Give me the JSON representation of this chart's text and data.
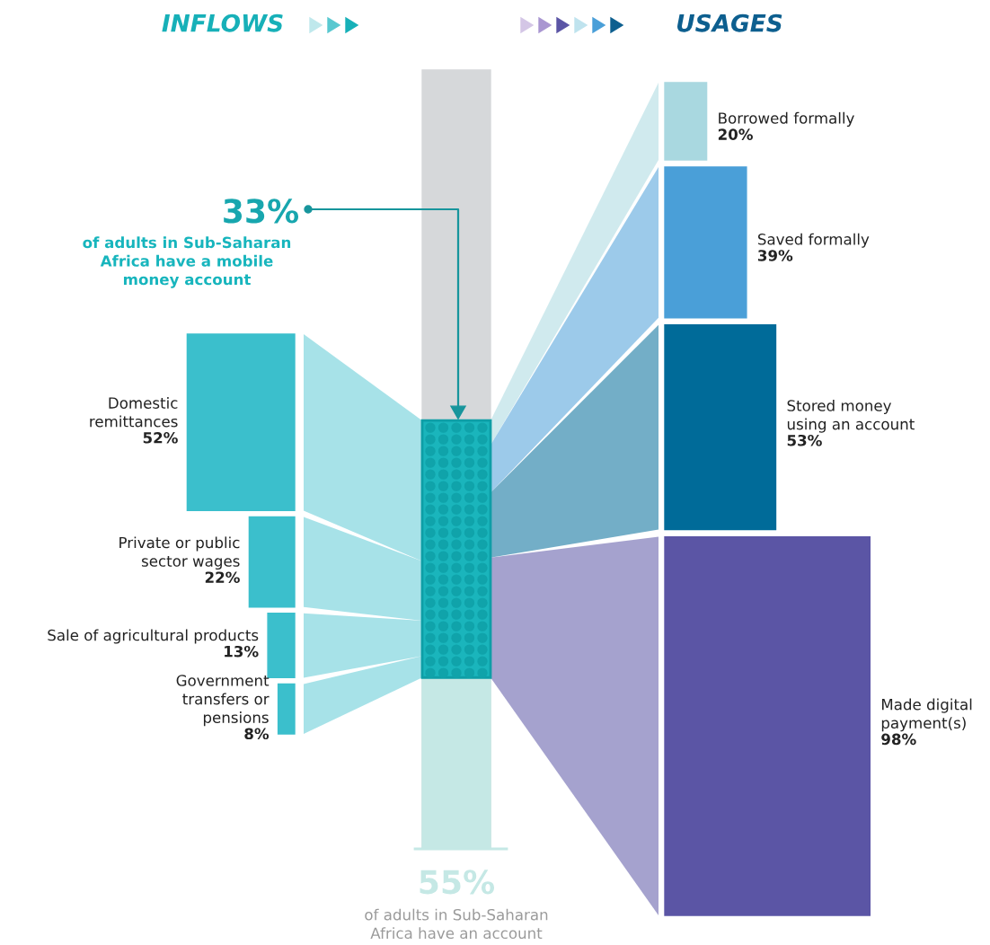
{
  "chart_data": [
    {
      "type": "other",
      "title": "INFLOWS",
      "categories": [
        "Domestic\nremittances",
        "Private or public\nsector wages",
        "Sale of agricultural products",
        "Government\ntransfers or\npensions"
      ],
      "values": [
        52,
        22,
        13,
        8
      ],
      "value_labels": [
        "52%",
        "22%",
        "13%",
        "8%"
      ],
      "colors": [
        "#3bbfcc",
        "#3bbfcc",
        "#3bbfcc",
        "#3bbfcc"
      ]
    },
    {
      "type": "other",
      "title": "USAGES",
      "categories": [
        "Borrowed formally",
        "Saved formally",
        "Stored money\nusing an account",
        "Made digital\npayment(s)"
      ],
      "values": [
        20,
        39,
        53,
        98
      ],
      "value_labels": [
        "20%",
        "39%",
        "53%",
        "98%"
      ],
      "colors": [
        "#a9d8e0",
        "#4a9fd8",
        "#006b99",
        "#5b55a5"
      ]
    },
    {
      "type": "other",
      "categories": [
        "of adults in Sub-Saharan\nAfrica have a mobile\nmoney account",
        "of adults in Sub-Saharan\nAfrica have an account"
      ],
      "values": [
        33,
        55
      ],
      "value_labels": [
        "33%",
        "55%"
      ],
      "colors": [
        "#1ab5bc",
        "#c5e8e5"
      ]
    }
  ]
}
